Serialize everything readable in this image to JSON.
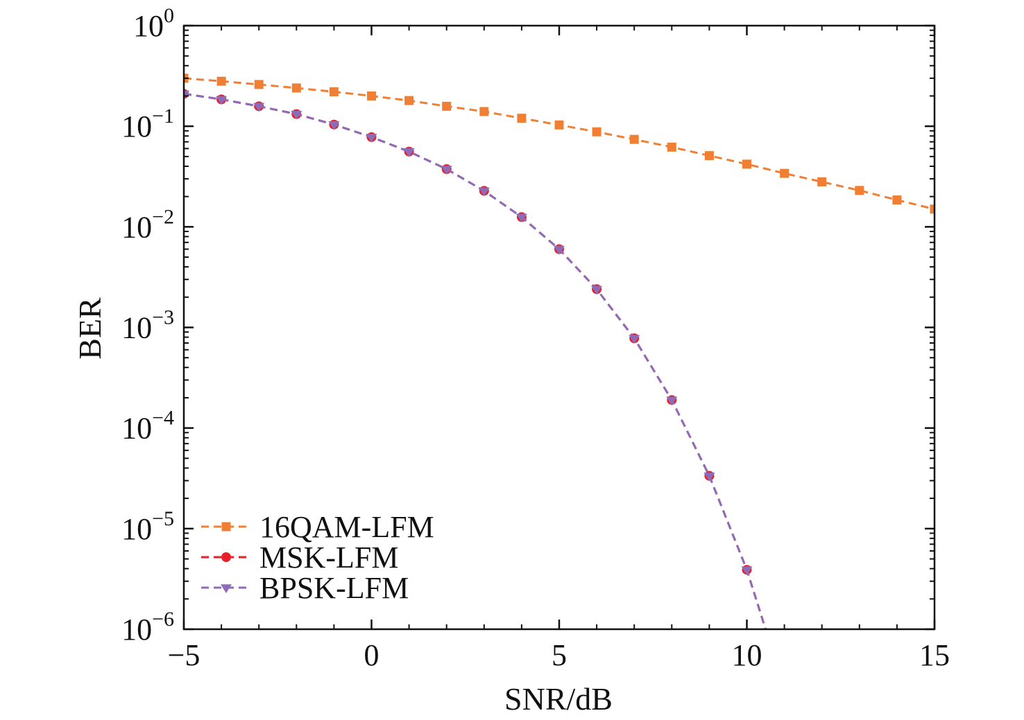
{
  "chart_data": {
    "type": "line",
    "title": "",
    "xlabel": "SNR/dB",
    "ylabel": "BER",
    "xlim": [
      -5,
      15
    ],
    "ylim": [
      1e-06,
      1
    ],
    "yscale": "log",
    "grid": false,
    "legend_position": "bottom-left",
    "x_ticks": [
      {
        "value": -5,
        "label": "−5"
      },
      {
        "value": 0,
        "label": "0"
      },
      {
        "value": 5,
        "label": "5"
      },
      {
        "value": 10,
        "label": "10"
      },
      {
        "value": 15,
        "label": "15"
      }
    ],
    "y_ticks": [
      {
        "exp": 0,
        "base": "10",
        "sup": "0"
      },
      {
        "exp": -1,
        "base": "10",
        "sup": "−1"
      },
      {
        "exp": -2,
        "base": "10",
        "sup": "−2"
      },
      {
        "exp": -3,
        "base": "10",
        "sup": "−3"
      },
      {
        "exp": -4,
        "base": "10",
        "sup": "−4"
      },
      {
        "exp": -5,
        "base": "10",
        "sup": "−5"
      },
      {
        "exp": -6,
        "base": "10",
        "sup": "−6"
      }
    ],
    "series": [
      {
        "name": "16QAM-LFM",
        "color": "#F07F34",
        "marker": "square",
        "line_style": "dashed",
        "x": [
          -5,
          -4,
          -3,
          -2,
          -1,
          0,
          1,
          2,
          3,
          4,
          5,
          6,
          7,
          8,
          9,
          10,
          11,
          12,
          13,
          14,
          15
        ],
        "y": [
          0.3,
          0.28,
          0.26,
          0.24,
          0.22,
          0.2,
          0.18,
          0.158,
          0.14,
          0.12,
          0.103,
          0.088,
          0.074,
          0.062,
          0.051,
          0.042,
          0.034,
          0.028,
          0.023,
          0.0185,
          0.015
        ]
      },
      {
        "name": "MSK-LFM",
        "color": "#E8202A",
        "marker": "circle",
        "line_style": "dashed",
        "x": [
          -5,
          -4,
          -3,
          -2,
          -1,
          0,
          1,
          2,
          3,
          4,
          5,
          6,
          7,
          8,
          9,
          10,
          10.5
        ],
        "y": [
          0.21,
          0.185,
          0.158,
          0.132,
          0.104,
          0.078,
          0.056,
          0.0375,
          0.0228,
          0.0125,
          0.006,
          0.0024,
          0.00078,
          0.00019,
          3.35e-05,
          3.9e-06,
          1e-06
        ]
      },
      {
        "name": "BPSK-LFM",
        "color": "#8E6BB8",
        "marker": "triangle-down",
        "line_style": "dashed",
        "x": [
          -5,
          -4,
          -3,
          -2,
          -1,
          0,
          1,
          2,
          3,
          4,
          5,
          6,
          7,
          8,
          9,
          10,
          10.5
        ],
        "y": [
          0.21,
          0.185,
          0.158,
          0.132,
          0.104,
          0.078,
          0.056,
          0.0375,
          0.0228,
          0.0125,
          0.006,
          0.0024,
          0.00078,
          0.00019,
          3.35e-05,
          3.9e-06,
          1e-06
        ]
      }
    ]
  }
}
